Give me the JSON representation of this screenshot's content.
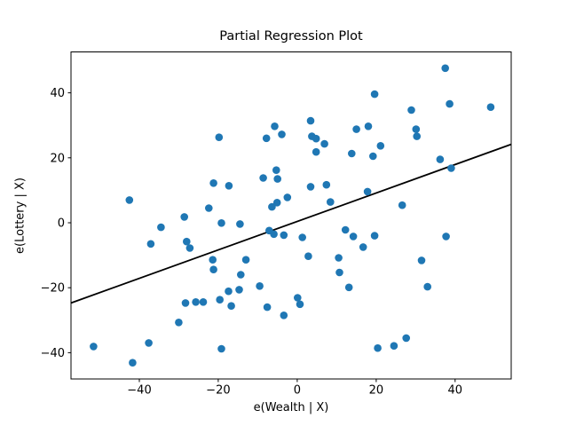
{
  "figure": {
    "background": "#ffffff",
    "text_color": "#000000"
  },
  "chart_data": {
    "type": "scatter",
    "title": "Partial Regression Plot",
    "xlabel": "e(Wealth | X)",
    "ylabel": "e(Lottery | X)",
    "xlim": [
      -57.3,
      54.2
    ],
    "ylim": [
      -48.1,
      52.6
    ],
    "x_ticks": [
      -40,
      -20,
      0,
      20,
      40
    ],
    "y_ticks": [
      -40,
      -20,
      0,
      20,
      40
    ],
    "grid": false,
    "legend": null,
    "marker_color": "#1f77b4",
    "marker_radius": 4.3,
    "line_color": "#000000",
    "frame_color": "#000000",
    "regression_line": {
      "slope": 0.438,
      "intercept": 0.4
    },
    "points": [
      [
        37.5,
        47.6
      ],
      [
        19.6,
        39.6
      ],
      [
        38.6,
        36.6
      ],
      [
        49.0,
        35.6
      ],
      [
        28.9,
        34.7
      ],
      [
        3.4,
        31.4
      ],
      [
        -5.7,
        29.7
      ],
      [
        18.0,
        29.7
      ],
      [
        15.0,
        28.8
      ],
      [
        30.1,
        28.8
      ],
      [
        -3.9,
        27.2
      ],
      [
        3.7,
        26.6
      ],
      [
        -19.8,
        26.3
      ],
      [
        -7.8,
        26.0
      ],
      [
        4.8,
        25.9
      ],
      [
        30.3,
        26.6
      ],
      [
        6.9,
        24.3
      ],
      [
        21.1,
        23.7
      ],
      [
        4.8,
        21.8
      ],
      [
        13.8,
        21.3
      ],
      [
        19.2,
        20.5
      ],
      [
        36.2,
        19.5
      ],
      [
        39.0,
        16.8
      ],
      [
        -5.3,
        16.2
      ],
      [
        -8.6,
        13.8
      ],
      [
        -5.0,
        13.5
      ],
      [
        -21.2,
        12.2
      ],
      [
        -17.3,
        11.4
      ],
      [
        3.4,
        11.1
      ],
      [
        7.4,
        11.7
      ],
      [
        17.8,
        9.6
      ],
      [
        -2.5,
        7.8
      ],
      [
        -42.5,
        7.0
      ],
      [
        -6.4,
        4.9
      ],
      [
        -5.1,
        6.2
      ],
      [
        8.4,
        6.4
      ],
      [
        26.6,
        5.4
      ],
      [
        -22.4,
        4.5
      ],
      [
        -28.6,
        1.8
      ],
      [
        -19.2,
        -0.1
      ],
      [
        -34.5,
        -1.4
      ],
      [
        -14.5,
        -0.4
      ],
      [
        -7.1,
        -2.4
      ],
      [
        -5.9,
        -3.5
      ],
      [
        -3.4,
        -3.8
      ],
      [
        1.3,
        -4.5
      ],
      [
        12.2,
        -2.2
      ],
      [
        14.2,
        -4.2
      ],
      [
        19.6,
        -4.0
      ],
      [
        37.7,
        -4.2
      ],
      [
        -37.1,
        -6.5
      ],
      [
        -28.0,
        -5.8
      ],
      [
        -27.2,
        -7.8
      ],
      [
        16.7,
        -7.5
      ],
      [
        -13.0,
        -11.4
      ],
      [
        2.8,
        -10.3
      ],
      [
        10.5,
        -10.8
      ],
      [
        -21.4,
        -11.4
      ],
      [
        31.5,
        -11.6
      ],
      [
        -21.2,
        -14.4
      ],
      [
        10.7,
        -15.3
      ],
      [
        -14.3,
        -16.0
      ],
      [
        -9.5,
        -19.5
      ],
      [
        13.1,
        -19.9
      ],
      [
        33.0,
        -19.7
      ],
      [
        -17.4,
        -21.1
      ],
      [
        -14.7,
        -20.6
      ],
      [
        -19.6,
        -23.7
      ],
      [
        0.1,
        -23.1
      ],
      [
        -28.3,
        -24.7
      ],
      [
        -25.7,
        -24.4
      ],
      [
        -23.8,
        -24.4
      ],
      [
        -16.7,
        -25.6
      ],
      [
        0.7,
        -25.1
      ],
      [
        -7.6,
        -26.0
      ],
      [
        -3.4,
        -28.5
      ],
      [
        -30.0,
        -30.7
      ],
      [
        27.6,
        -35.5
      ],
      [
        -37.6,
        -37.0
      ],
      [
        -51.6,
        -38.1
      ],
      [
        24.5,
        -37.9
      ],
      [
        20.4,
        -38.6
      ],
      [
        -19.2,
        -38.8
      ],
      [
        -41.7,
        -43.1
      ]
    ]
  }
}
